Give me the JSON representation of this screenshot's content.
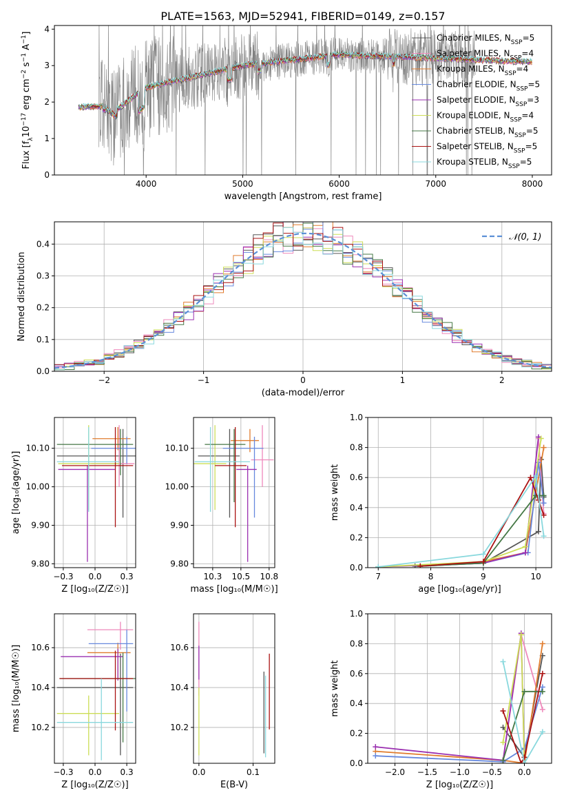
{
  "figure_title": "PLATE=1563, MJD=52941, FIBERID=0149, z=0.157",
  "colors": {
    "c0": "#555555",
    "c1": "#ee88bb",
    "c2": "#e07b2c",
    "c3": "#6688dd",
    "c4": "#9a2fb0",
    "c5": "#ccdd55",
    "c6": "#447744",
    "c7": "#aa1111",
    "c8": "#88d8dd",
    "spec_gray": "#808080",
    "normal_line": "#5b8fd6"
  },
  "chart_data": [
    {
      "id": "spectrum",
      "type": "line",
      "xlabel": "wavelength [Angstrom, rest frame]",
      "ylabel_parts": [
        "Flux [f",
        "λ",
        "10",
        "−17",
        " erg cm",
        "−2",
        " s",
        "−1",
        " A",
        "−1",
        "]"
      ],
      "xlim": [
        3050,
        8200
      ],
      "ylim": [
        0,
        4.1
      ],
      "xticks": [
        4000,
        5000,
        6000,
        7000,
        8000
      ],
      "yticks": [
        0,
        1,
        2,
        3,
        4
      ],
      "observed_range": [
        3510,
        7410
      ],
      "model_range": [
        3300,
        8000
      ],
      "legend": [
        {
          "base": "Chabrier MILES, N",
          "sub": "SSP",
          "val": "=5",
          "color": "c0"
        },
        {
          "base": "Salpeter MILES, N",
          "sub": "SSP",
          "val": "=4",
          "color": "c1"
        },
        {
          "base": "Kroupa MILES, N",
          "sub": "SSP",
          "val": "=4",
          "color": "c2"
        },
        {
          "base": "Chabrier ELODIE, N",
          "sub": "SSP",
          "val": "=5",
          "color": "c3"
        },
        {
          "base": "Salpeter ELODIE, N",
          "sub": "SSP",
          "val": "=3",
          "color": "c4"
        },
        {
          "base": "Kroupa ELODIE, N",
          "sub": "SSP",
          "val": "=4",
          "color": "c5"
        },
        {
          "base": "Chabrier STELIB, N",
          "sub": "SSP",
          "val": "=5",
          "color": "c6"
        },
        {
          "base": "Salpeter STELIB, N",
          "sub": "SSP",
          "val": "=5",
          "color": "c7"
        },
        {
          "base": "Kroupa STELIB, N",
          "sub": "SSP",
          "val": "=5",
          "color": "c8"
        }
      ]
    },
    {
      "id": "residuals",
      "type": "histogram",
      "xlabel": "(data-model)/error",
      "ylabel": "Normed distribution",
      "xlim": [
        -2.5,
        2.5
      ],
      "ylim": [
        0,
        0.47
      ],
      "xticks": [
        -2,
        -1,
        0,
        1,
        2
      ],
      "yticks": [
        0.0,
        0.1,
        0.2,
        0.3,
        0.4
      ],
      "bin_width": 0.1,
      "legend_label": "𝒩(0, 1)"
    },
    {
      "id": "age_vs_Z",
      "type": "errorbar",
      "xlabel": "Z [log₁₀(Z/Z☉)]",
      "ylabel": "age  [log₁₀(age/yr)]",
      "xlim": [
        -0.32,
        0.32
      ],
      "ylim": [
        9.79,
        10.18
      ],
      "xticks": [
        -0.25,
        0.0,
        0.25
      ],
      "yticks": [
        9.8,
        9.9,
        10.0,
        10.1
      ],
      "points": [
        {
          "color": "c0",
          "x": 0.22,
          "xerr": [
            0.52,
            0.12
          ],
          "y": 10.08,
          "yerr": [
            0.16,
            0.07
          ]
        },
        {
          "color": "c1",
          "x": 0.19,
          "xerr": [
            0.22,
            0.12
          ],
          "y": 10.06,
          "yerr": [
            0.06,
            0.1
          ]
        },
        {
          "color": "c2",
          "x": 0.18,
          "xerr": [
            0.2,
            0.1
          ],
          "y": 10.125,
          "yerr": [
            0.03,
            0.03
          ]
        },
        {
          "color": "c3",
          "x": 0.25,
          "xerr": [
            0.28,
            0.32
          ],
          "y": 10.1,
          "yerr": [
            0.04,
            0.03
          ]
        },
        {
          "color": "c4",
          "x": -0.06,
          "xerr": [
            0.23,
            0.22
          ],
          "y": 10.045,
          "yerr": [
            0.24,
            0.01
          ]
        },
        {
          "color": "c5",
          "x": -0.05,
          "xerr": [
            0.24,
            0.24
          ],
          "y": 10.06,
          "yerr": [
            0.12,
            0.1
          ]
        },
        {
          "color": "c6",
          "x": 0.2,
          "xerr": [
            0.5,
            0.1
          ],
          "y": 10.11,
          "yerr": [
            0.08,
            0.04
          ]
        },
        {
          "color": "c7",
          "x": 0.16,
          "xerr": [
            0.42,
            0.14
          ],
          "y": 10.055,
          "yerr": [
            0.16,
            0.1
          ]
        },
        {
          "color": "c8",
          "x": -0.05,
          "xerr": [
            0.25,
            0.24
          ],
          "y": 10.065,
          "yerr": [
            0.13,
            0.09
          ]
        }
      ]
    },
    {
      "id": "age_vs_mass",
      "type": "errorbar",
      "xlabel": "mass [log₁₀(M/M☉)]",
      "ylabel": "",
      "xlim": [
        10.08,
        10.8
      ],
      "ylim": [
        9.79,
        10.18
      ],
      "xticks": [
        10.25,
        10.5,
        10.75
      ],
      "yticks": [
        9.8,
        9.9,
        10.0,
        10.1
      ],
      "points": [
        {
          "color": "c0",
          "x": 10.4,
          "xerr": [
            0.28,
            0.09
          ],
          "y": 10.08,
          "yerr": [
            0.16,
            0.07
          ]
        },
        {
          "color": "c1",
          "x": 10.69,
          "xerr": [
            0.1,
            0.1
          ],
          "y": 10.07,
          "yerr": [
            0.07,
            0.09
          ]
        },
        {
          "color": "c2",
          "x": 10.58,
          "xerr": [
            0.17,
            0.08
          ],
          "y": 10.12,
          "yerr": [
            0.03,
            0.03
          ]
        },
        {
          "color": "c3",
          "x": 10.62,
          "xerr": [
            0.28,
            0.08
          ],
          "y": 10.1,
          "yerr": [
            0.18,
            0.03
          ]
        },
        {
          "color": "c4",
          "x": 10.56,
          "xerr": [
            0.1,
            0.08
          ],
          "y": 10.045,
          "yerr": [
            0.24,
            0.01
          ]
        },
        {
          "color": "c5",
          "x": 10.27,
          "xerr": [
            0.2,
            0.1
          ],
          "y": 10.06,
          "yerr": [
            0.12,
            0.1
          ]
        },
        {
          "color": "c6",
          "x": 10.44,
          "xerr": [
            0.26,
            0.1
          ],
          "y": 10.11,
          "yerr": [
            0.15,
            0.04
          ]
        },
        {
          "color": "c7",
          "x": 10.45,
          "xerr": [
            0.18,
            0.1
          ],
          "y": 10.055,
          "yerr": [
            0.16,
            0.1
          ]
        },
        {
          "color": "c8",
          "x": 10.23,
          "xerr": [
            0.14,
            0.35
          ],
          "y": 10.065,
          "yerr": [
            0.13,
            0.09
          ]
        }
      ]
    },
    {
      "id": "weight_vs_age",
      "type": "line",
      "xlabel": "age  [log₁₀(age/yr)]",
      "ylabel": "mass weight",
      "xlim": [
        6.8,
        10.3
      ],
      "ylim": [
        0,
        1.0
      ],
      "xticks": [
        7,
        8,
        9,
        10
      ],
      "yticks": [
        0.0,
        0.2,
        0.4,
        0.6,
        0.8,
        1.0
      ],
      "series": [
        {
          "color": "c0",
          "x": [
            7.7,
            9.0,
            10.05,
            10.1,
            10.15
          ],
          "y": [
            0.01,
            0.03,
            0.24,
            0.72,
            0.47
          ]
        },
        {
          "color": "c1",
          "x": [
            7.8,
            9.0,
            9.8,
            10.05,
            10.15
          ],
          "y": [
            0.01,
            0.03,
            0.1,
            0.86,
            0.36
          ]
        },
        {
          "color": "c2",
          "x": [
            7.8,
            9.0,
            9.8,
            10.15
          ],
          "y": [
            0.01,
            0.04,
            0.1,
            0.8
          ]
        },
        {
          "color": "c3",
          "x": [
            7.8,
            9.0,
            9.85,
            10.05,
            10.15
          ],
          "y": [
            0.01,
            0.03,
            0.1,
            0.7,
            0.43
          ]
        },
        {
          "color": "c4",
          "x": [
            7.0,
            9.0,
            9.8,
            10.05
          ],
          "y": [
            0.005,
            0.03,
            0.1,
            0.87
          ]
        },
        {
          "color": "c5",
          "x": [
            7.0,
            9.0,
            9.8,
            10.1
          ],
          "y": [
            0.005,
            0.04,
            0.14,
            0.86
          ]
        },
        {
          "color": "c6",
          "x": [
            7.8,
            9.0,
            10.0,
            10.15
          ],
          "y": [
            0.01,
            0.03,
            0.48,
            0.48
          ]
        },
        {
          "color": "c7",
          "x": [
            7.8,
            9.0,
            9.9,
            10.05,
            10.15
          ],
          "y": [
            0.01,
            0.04,
            0.6,
            0.45,
            0.35
          ]
        },
        {
          "color": "c8",
          "x": [
            7.0,
            9.0,
            10.0,
            10.15
          ],
          "y": [
            0.005,
            0.09,
            0.61,
            0.21
          ]
        }
      ]
    },
    {
      "id": "mass_vs_Z",
      "type": "errorbar",
      "xlabel": "Z [log₁₀(Z/Z☉)]",
      "ylabel": "mass [log₁₀(M/M☉)]",
      "xlim": [
        -0.32,
        0.32
      ],
      "ylim": [
        10.02,
        10.77
      ],
      "xticks": [
        -0.25,
        0.0,
        0.25
      ],
      "yticks": [
        10.2,
        10.4,
        10.6
      ],
      "points": [
        {
          "color": "c0",
          "x": 0.2,
          "xerr": [
            0.5,
            0.1
          ],
          "y": 10.4,
          "yerr": [
            0.34,
            0.17
          ]
        },
        {
          "color": "c1",
          "x": 0.2,
          "xerr": [
            0.26,
            0.1
          ],
          "y": 10.69,
          "yerr": [
            0.1,
            0.04
          ]
        },
        {
          "color": "c2",
          "x": 0.18,
          "xerr": [
            0.24,
            0.1
          ],
          "y": 10.575,
          "yerr": [
            0.13,
            0.05
          ]
        },
        {
          "color": "c3",
          "x": 0.25,
          "xerr": [
            0.3,
            0.05
          ],
          "y": 10.62,
          "yerr": [
            0.34,
            0.07
          ]
        },
        {
          "color": "c4",
          "x": 0.18,
          "xerr": [
            0.45,
            0.04
          ],
          "y": 10.555,
          "yerr": [
            0.12,
            0.04
          ]
        },
        {
          "color": "c5",
          "x": -0.05,
          "xerr": [
            0.25,
            0.24
          ],
          "y": 10.27,
          "yerr": [
            0.21,
            0.09
          ]
        },
        {
          "color": "c6",
          "x": 0.22,
          "xerr": [
            0.5,
            0.1
          ],
          "y": 10.445,
          "yerr": [
            0.32,
            0.13
          ]
        },
        {
          "color": "c7",
          "x": 0.16,
          "xerr": [
            0.44,
            0.14
          ],
          "y": 10.445,
          "yerr": [
            0.26,
            0.14
          ]
        },
        {
          "color": "c8",
          "x": 0.05,
          "xerr": [
            0.35,
            0.25
          ],
          "y": 10.225,
          "yerr": [
            0.19,
            0.22
          ]
        }
      ]
    },
    {
      "id": "mass_vs_EBV",
      "type": "errorbar",
      "xlabel": "E(B-V)",
      "ylabel": "",
      "xlim": [
        -0.01,
        0.14
      ],
      "ylim": [
        10.02,
        10.77
      ],
      "xticks": [
        0.0,
        0.1
      ],
      "yticks": [
        10.2,
        10.4,
        10.6
      ],
      "points": [
        {
          "color": "c1",
          "x": 0.0,
          "y": 10.48,
          "yerr": [
            0.12,
            0.25
          ]
        },
        {
          "color": "c4",
          "x": 0.0,
          "y": 10.49,
          "yerr": [
            0.05,
            0.12
          ]
        },
        {
          "color": "c5",
          "x": 0.0,
          "y": 10.28,
          "yerr": [
            0.22,
            0.12
          ]
        },
        {
          "color": "c0",
          "x": 0.12,
          "y": 10.27,
          "yerr": [
            0.2,
            0.21
          ]
        },
        {
          "color": "c8",
          "x": 0.123,
          "y": 10.25,
          "yerr": [
            0.2,
            0.21
          ]
        },
        {
          "color": "c7",
          "x": 0.13,
          "y": 10.38,
          "yerr": [
            0.19,
            0.19
          ]
        }
      ]
    },
    {
      "id": "weight_vs_Z",
      "type": "line",
      "xlabel": "Z [log₁₀(Z/Z☉)]",
      "ylabel": "mass weight",
      "xlim": [
        -2.42,
        0.42
      ],
      "ylim": [
        0,
        1.0
      ],
      "xticks": [
        -2.0,
        -1.5,
        -1.0,
        -0.5,
        0.0
      ],
      "yticks": [
        0.0,
        0.2,
        0.4,
        0.6,
        0.8,
        1.0
      ],
      "series": [
        {
          "color": "c0",
          "x": [
            -0.33,
            0.0,
            0.28
          ],
          "y": [
            0.24,
            0.04,
            0.72
          ]
        },
        {
          "color": "c1",
          "x": [
            -0.33,
            -0.05,
            0.28
          ],
          "y": [
            0.01,
            0.86,
            0.36
          ]
        },
        {
          "color": "c2",
          "x": [
            -2.3,
            -0.33,
            0.0,
            0.28
          ],
          "y": [
            0.08,
            0.02,
            0.0,
            0.8
          ]
        },
        {
          "color": "c3",
          "x": [
            -2.3,
            -0.33,
            0.0,
            0.28
          ],
          "y": [
            0.05,
            0.01,
            0.1,
            0.51
          ]
        },
        {
          "color": "c4",
          "x": [
            -2.3,
            -0.33,
            -0.05,
            0.0
          ],
          "y": [
            0.11,
            0.02,
            0.87,
            0.0
          ]
        },
        {
          "color": "c5",
          "x": [
            -0.33,
            -0.05,
            0.0
          ],
          "y": [
            0.14,
            0.86,
            0.0
          ]
        },
        {
          "color": "c6",
          "x": [
            -0.33,
            0.0,
            0.28
          ],
          "y": [
            0.02,
            0.48,
            0.48
          ]
        },
        {
          "color": "c7",
          "x": [
            -0.33,
            -0.05,
            0.0,
            0.28
          ],
          "y": [
            0.35,
            0.0,
            0.04,
            0.6
          ]
        },
        {
          "color": "c8",
          "x": [
            -0.33,
            0.0,
            0.28
          ],
          "y": [
            0.68,
            0.0,
            0.21
          ]
        }
      ]
    }
  ]
}
